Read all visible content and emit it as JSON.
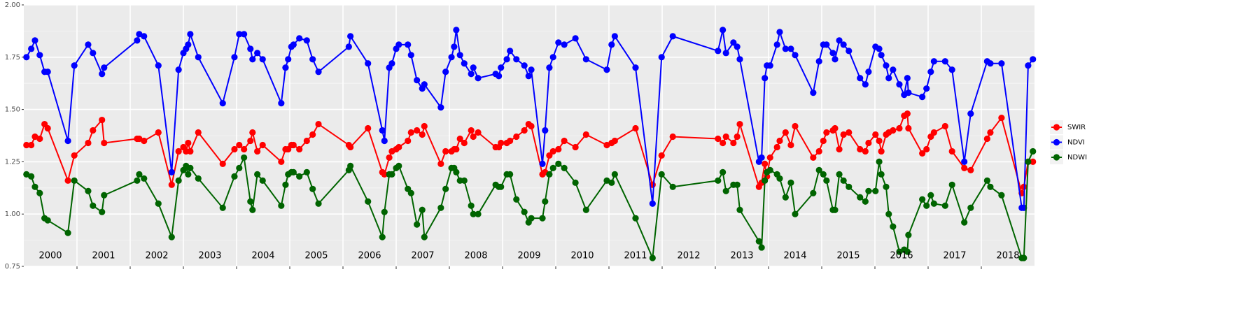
{
  "chart_data": {
    "type": "line",
    "xlim": [
      2000,
      2019
    ],
    "xticks": [
      2001,
      2002,
      2003,
      2004,
      2005,
      2006,
      2007,
      2008,
      2009,
      2010,
      2011,
      2012,
      2013,
      2014,
      2015,
      2016,
      2017,
      2018
    ],
    "ylim": [
      0.75,
      2
    ],
    "yticks": [
      0.75,
      {
        "value": 1,
        "label": "1.00"
      },
      1.25,
      {
        "value": 1.5,
        "label": "1.50"
      },
      1.75,
      {
        "value": 2,
        "label": "2.00"
      }
    ],
    "minor_yticks": [
      0.875,
      1.125,
      1.375,
      1.625,
      1.875
    ],
    "grid": true,
    "legend": "right",
    "annotations": [
      {
        "text": "2000",
        "x": 2000.5
      },
      {
        "text": "2001",
        "x": 2001.5
      },
      {
        "text": "2002",
        "x": 2002.5
      },
      {
        "text": "2003",
        "x": 2003.5
      },
      {
        "text": "2004",
        "x": 2004.5
      },
      {
        "text": "2005",
        "x": 2005.5
      },
      {
        "text": "2006",
        "x": 2006.5
      },
      {
        "text": "2007",
        "x": 2007.5
      },
      {
        "text": "2008",
        "x": 2008.5
      },
      {
        "text": "2009",
        "x": 2009.5
      },
      {
        "text": "2010",
        "x": 2010.5
      },
      {
        "text": "2011",
        "x": 2011.5
      },
      {
        "text": "2012",
        "x": 2012.5
      },
      {
        "text": "2013",
        "x": 2013.5
      },
      {
        "text": "2014",
        "x": 2014.5
      },
      {
        "text": "2015",
        "x": 2015.5
      },
      {
        "text": "2016",
        "x": 2016.5
      },
      {
        "text": "2017",
        "x": 2017.5
      },
      {
        "text": "2018",
        "x": 2018.5
      }
    ],
    "x": [
      2000.05,
      2000.14,
      2000.21,
      2000.3,
      2000.39,
      2000.45,
      2000.83,
      2000.95,
      2001.21,
      2001.3,
      2001.47,
      2001.51,
      2002.13,
      2002.17,
      2002.26,
      2002.53,
      2002.78,
      2002.91,
      2003.0,
      2003.05,
      2003.09,
      2003.13,
      2003.28,
      2003.74,
      2003.96,
      2004.05,
      2004.14,
      2004.26,
      2004.3,
      2004.39,
      2004.49,
      2004.84,
      2004.92,
      2004.97,
      2005.03,
      2005.07,
      2005.18,
      2005.32,
      2005.43,
      2005.54,
      2006.11,
      2006.14,
      2006.47,
      2006.74,
      2006.78,
      2006.87,
      2006.92,
      2007.0,
      2007.05,
      2007.22,
      2007.28,
      2007.39,
      2007.49,
      2007.53,
      2007.84,
      2007.93,
      2008.04,
      2008.09,
      2008.13,
      2008.2,
      2008.28,
      2008.41,
      2008.45,
      2008.54,
      2008.87,
      2008.93,
      2008.97,
      2009.08,
      2009.14,
      2009.26,
      2009.41,
      2009.49,
      2009.54,
      2009.75,
      2009.8,
      2009.88,
      2009.95,
      2010.05,
      2010.16,
      2010.37,
      2010.57,
      2010.96,
      2011.05,
      2011.11,
      2011.5,
      2011.82,
      2011.99,
      2012.2,
      2013.05,
      2013.14,
      2013.2,
      2013.34,
      2013.41,
      2013.46,
      2013.82,
      2013.87,
      2013.93,
      2013.97,
      2014.03,
      2014.16,
      2014.21,
      2014.32,
      2014.42,
      2014.5,
      2014.84,
      2014.95,
      2015.03,
      2015.09,
      2015.21,
      2015.25,
      2015.33,
      2015.41,
      2015.51,
      2015.72,
      2015.82,
      2015.88,
      2016.01,
      2016.08,
      2016.12,
      2016.21,
      2016.26,
      2016.34,
      2016.46,
      2016.55,
      2016.61,
      2016.63,
      2016.89,
      2016.97,
      2017.05,
      2017.11,
      2017.32,
      2017.45,
      2017.68,
      2017.8,
      2018.11,
      2018.17,
      2018.38,
      2018.76,
      2018.8,
      2018.88,
      2018.97
    ],
    "series": [
      {
        "name": "SWIR",
        "color": "#ff0000",
        "values": [
          1.33,
          1.33,
          1.37,
          1.36,
          1.43,
          1.41,
          1.16,
          1.28,
          1.34,
          1.4,
          1.45,
          1.34,
          1.36,
          1.36,
          1.35,
          1.39,
          1.14,
          1.3,
          1.32,
          1.3,
          1.34,
          1.3,
          1.39,
          1.24,
          1.31,
          1.33,
          1.31,
          1.35,
          1.39,
          1.3,
          1.33,
          1.25,
          1.31,
          1.31,
          1.33,
          1.33,
          1.31,
          1.35,
          1.38,
          1.43,
          1.33,
          1.32,
          1.41,
          1.2,
          1.19,
          1.27,
          1.3,
          1.31,
          1.32,
          1.35,
          1.39,
          1.4,
          1.38,
          1.42,
          1.24,
          1.3,
          1.3,
          1.31,
          1.31,
          1.36,
          1.34,
          1.4,
          1.37,
          1.39,
          1.32,
          1.32,
          1.34,
          1.34,
          1.35,
          1.37,
          1.4,
          1.43,
          1.42,
          1.19,
          1.2,
          1.28,
          1.3,
          1.31,
          1.35,
          1.32,
          1.38,
          1.33,
          1.34,
          1.35,
          1.41,
          1.14,
          1.28,
          1.37,
          1.36,
          1.34,
          1.37,
          1.34,
          1.37,
          1.43,
          1.13,
          1.15,
          1.24,
          1.18,
          1.27,
          1.32,
          1.35,
          1.39,
          1.33,
          1.42,
          1.27,
          1.3,
          1.35,
          1.39,
          1.4,
          1.41,
          1.31,
          1.38,
          1.39,
          1.31,
          1.3,
          1.34,
          1.38,
          1.35,
          1.3,
          1.38,
          1.39,
          1.4,
          1.41,
          1.47,
          1.48,
          1.41,
          1.29,
          1.31,
          1.37,
          1.39,
          1.42,
          1.3,
          1.22,
          1.21,
          1.36,
          1.39,
          1.46,
          1.1,
          1.13,
          1.25,
          1.25
        ]
      },
      {
        "name": "NDVI",
        "color": "#0000ff",
        "values": [
          1.75,
          1.79,
          1.83,
          1.76,
          1.68,
          1.68,
          1.35,
          1.71,
          1.81,
          1.77,
          1.67,
          1.7,
          1.83,
          1.86,
          1.85,
          1.71,
          1.2,
          1.69,
          1.77,
          1.79,
          1.81,
          1.86,
          1.75,
          1.53,
          1.75,
          1.86,
          1.86,
          1.79,
          1.74,
          1.77,
          1.74,
          1.53,
          1.7,
          1.74,
          1.8,
          1.81,
          1.84,
          1.83,
          1.74,
          1.68,
          1.8,
          1.85,
          1.72,
          1.4,
          1.35,
          1.7,
          1.72,
          1.79,
          1.81,
          1.81,
          1.76,
          1.64,
          1.6,
          1.62,
          1.51,
          1.68,
          1.75,
          1.8,
          1.88,
          1.76,
          1.72,
          1.67,
          1.7,
          1.65,
          1.67,
          1.66,
          1.7,
          1.74,
          1.78,
          1.74,
          1.71,
          1.66,
          1.69,
          1.24,
          1.4,
          1.7,
          1.75,
          1.82,
          1.81,
          1.84,
          1.74,
          1.69,
          1.81,
          1.85,
          1.7,
          1.05,
          1.75,
          1.85,
          1.78,
          1.88,
          1.77,
          1.82,
          1.8,
          1.74,
          1.25,
          1.27,
          1.65,
          1.71,
          1.71,
          1.81,
          1.87,
          1.79,
          1.79,
          1.76,
          1.58,
          1.73,
          1.81,
          1.81,
          1.77,
          1.74,
          1.83,
          1.81,
          1.78,
          1.65,
          1.62,
          1.68,
          1.8,
          1.79,
          1.76,
          1.71,
          1.65,
          1.69,
          1.62,
          1.57,
          1.65,
          1.58,
          1.56,
          1.6,
          1.68,
          1.73,
          1.73,
          1.69,
          1.25,
          1.48,
          1.73,
          1.72,
          1.72,
          1.03,
          1.03,
          1.71,
          1.74
        ]
      },
      {
        "name": "NDWI",
        "color": "#006400",
        "values": [
          1.19,
          1.18,
          1.13,
          1.1,
          0.98,
          0.97,
          0.91,
          1.16,
          1.11,
          1.04,
          1.01,
          1.09,
          1.16,
          1.19,
          1.17,
          1.05,
          0.89,
          1.16,
          1.21,
          1.23,
          1.19,
          1.22,
          1.17,
          1.03,
          1.18,
          1.22,
          1.27,
          1.06,
          1.02,
          1.19,
          1.16,
          1.04,
          1.14,
          1.19,
          1.2,
          1.2,
          1.18,
          1.2,
          1.12,
          1.05,
          1.21,
          1.23,
          1.06,
          0.89,
          1.01,
          1.19,
          1.19,
          1.22,
          1.23,
          1.12,
          1.1,
          0.95,
          1.02,
          0.89,
          1.03,
          1.12,
          1.22,
          1.22,
          1.2,
          1.16,
          1.16,
          1.04,
          1.0,
          1.0,
          1.14,
          1.13,
          1.13,
          1.19,
          1.19,
          1.07,
          1.01,
          0.96,
          0.98,
          0.98,
          1.06,
          1.19,
          1.22,
          1.24,
          1.22,
          1.15,
          1.02,
          1.16,
          1.15,
          1.19,
          0.98,
          0.79,
          1.19,
          1.13,
          1.16,
          1.2,
          1.11,
          1.14,
          1.14,
          1.02,
          0.87,
          0.84,
          1.16,
          1.2,
          1.21,
          1.19,
          1.17,
          1.08,
          1.15,
          1.0,
          1.1,
          1.21,
          1.19,
          1.16,
          1.02,
          1.02,
          1.19,
          1.16,
          1.13,
          1.08,
          1.06,
          1.11,
          1.11,
          1.25,
          1.19,
          1.13,
          1.0,
          0.94,
          0.82,
          0.83,
          0.82,
          0.9,
          1.07,
          1.04,
          1.09,
          1.05,
          1.04,
          1.14,
          0.96,
          1.03,
          1.16,
          1.13,
          1.09,
          0.79,
          0.79,
          1.25,
          1.3
        ]
      }
    ]
  }
}
